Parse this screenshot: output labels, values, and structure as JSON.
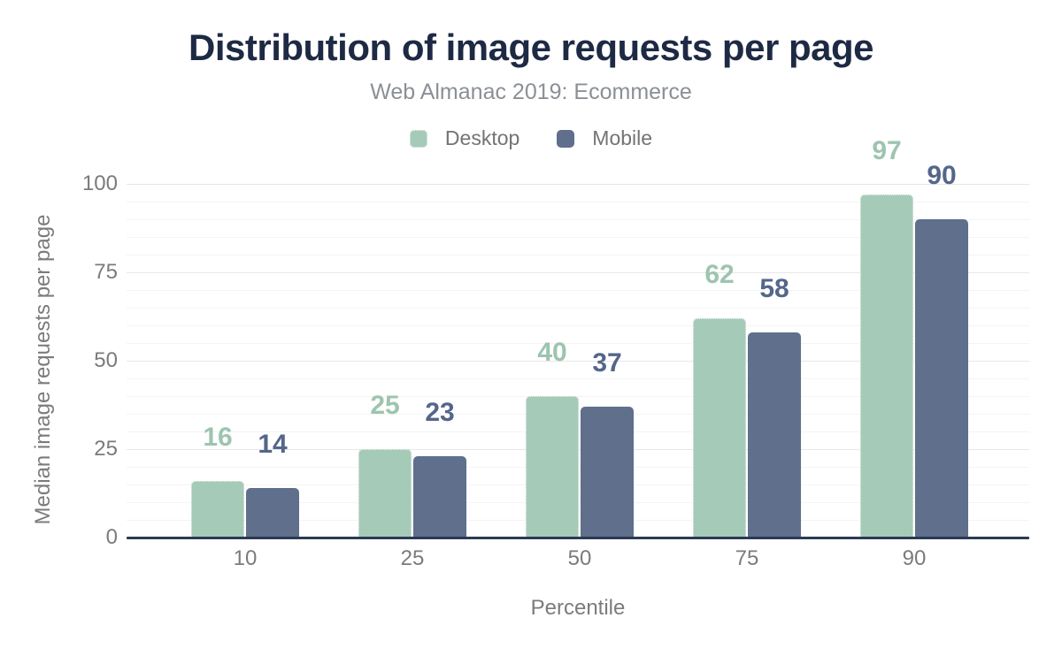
{
  "chart_data": {
    "type": "bar",
    "title": "Distribution of image requests per page",
    "subtitle": "Web Almanac 2019: Ecommerce",
    "xlabel": "Percentile",
    "ylabel": "Median image requests per page",
    "categories": [
      "10",
      "25",
      "50",
      "75",
      "90"
    ],
    "series": [
      {
        "name": "Desktop",
        "color": "#a6cab8",
        "label_color": "#9dc4af",
        "values": [
          16,
          25,
          40,
          62,
          97
        ]
      },
      {
        "name": "Mobile",
        "color": "#5f6f8c",
        "label_color": "#54668a",
        "values": [
          14,
          23,
          37,
          58,
          90
        ]
      }
    ],
    "ylim": [
      0,
      100
    ],
    "yticks": [
      0,
      25,
      50,
      75,
      100
    ],
    "minor_grid_step": 5,
    "grid": true,
    "legend_position": "top"
  },
  "colors": {
    "title": "#1e2a44",
    "axis_line": "#2b3a55",
    "muted_text": "#7b7b7b",
    "subtitle_text": "#8b9096",
    "major_gridline": "#e7e7e7",
    "minor_gridline": "#f4f4f4",
    "background": "#ffffff"
  }
}
